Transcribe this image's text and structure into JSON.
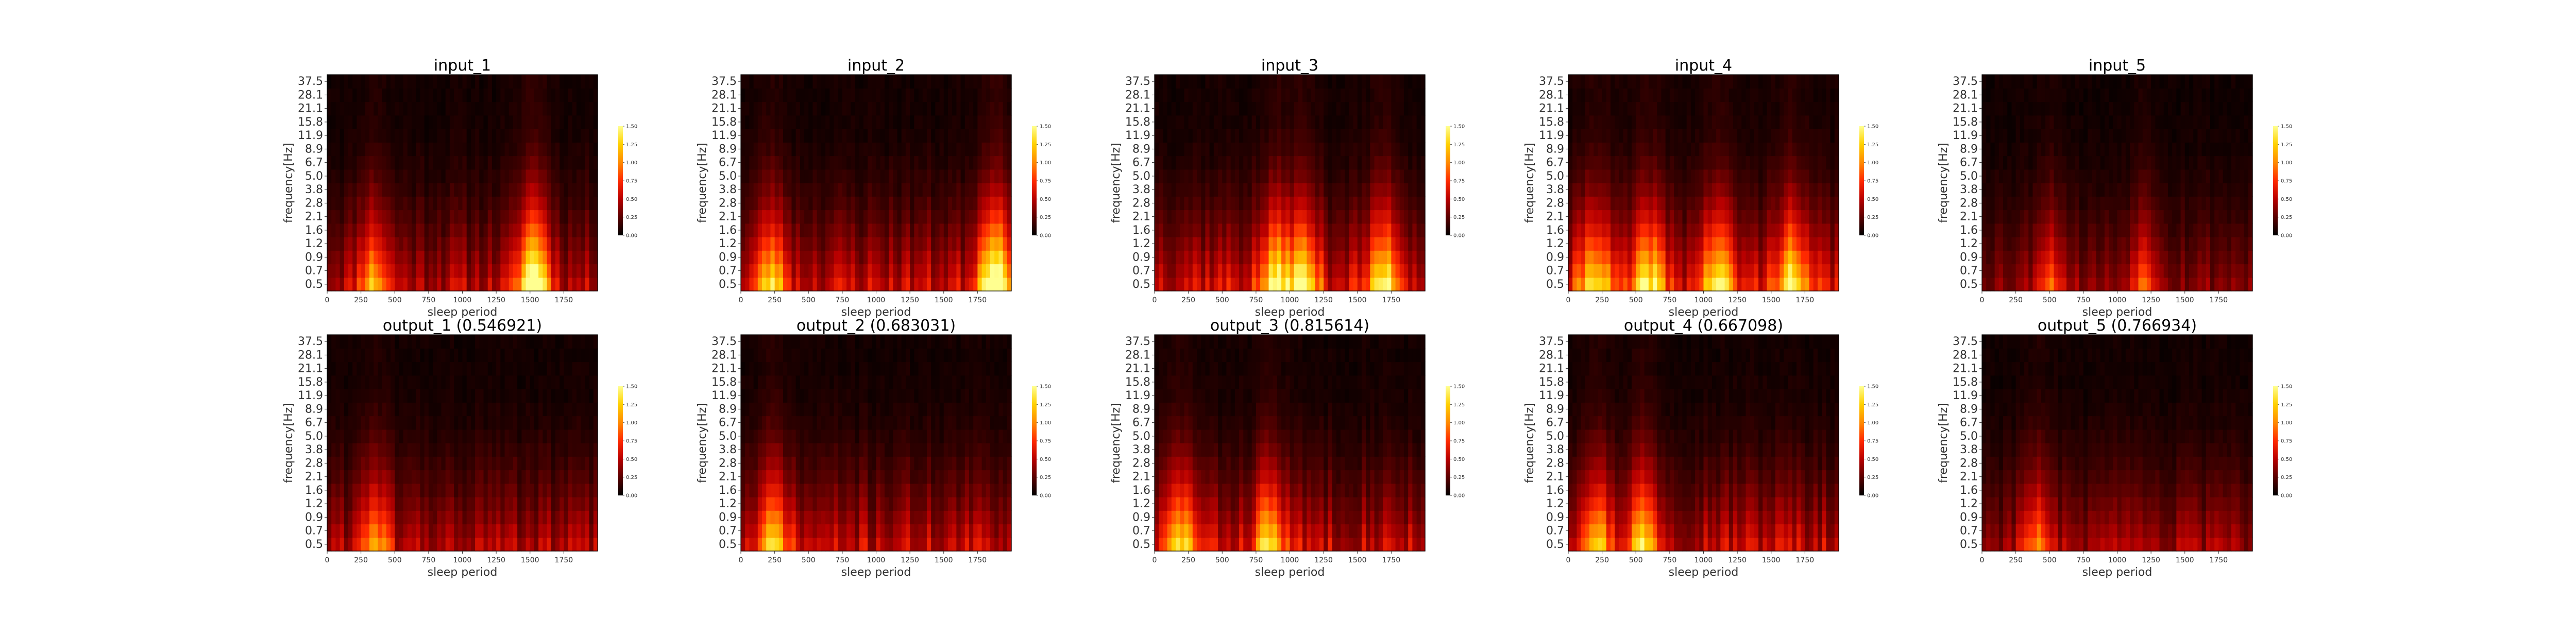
{
  "chart_data": {
    "type": "heatmap",
    "rows": 2,
    "cols": 5,
    "colormap": "hot",
    "colors": {
      "hot_stops": [
        "#000000",
        "#5a0000",
        "#b80000",
        "#ff2a00",
        "#ff8a00",
        "#ffd000",
        "#ffff90"
      ]
    },
    "x_ticks": [
      0,
      250,
      500,
      750,
      1000,
      1250,
      1500,
      1750
    ],
    "x_range": [
      0,
      2000
    ],
    "y_ticks": [
      "0.5",
      "0.7",
      "0.9",
      "1.2",
      "1.6",
      "2.1",
      "2.8",
      "3.8",
      "5.0",
      "6.7",
      "8.9",
      "11.9",
      "15.8",
      "21.1",
      "28.1",
      "37.5"
    ],
    "colorbar_ticks": [
      "0.00",
      "0.25",
      "0.50",
      "0.75",
      "1.00",
      "1.25",
      "1.50"
    ],
    "colorbar_range": [
      0,
      1.5
    ],
    "panels": [
      {
        "title": "input_1",
        "xlabel": "sleep period",
        "ylabel": "frequency[Hz]",
        "intensity": 0.8,
        "seed": 11,
        "bursts": [
          340,
          1510,
          1550
        ]
      },
      {
        "title": "input_2",
        "xlabel": "sleep period",
        "ylabel": "frequency[Hz]",
        "intensity": 0.9,
        "seed": 23,
        "bursts": [
          230,
          1840,
          1920
        ]
      },
      {
        "title": "input_3",
        "xlabel": "sleep period",
        "ylabel": "frequency[Hz]",
        "intensity": 1.0,
        "seed": 37,
        "bursts": [
          900,
          1100,
          1700
        ]
      },
      {
        "title": "input_4",
        "xlabel": "sleep period",
        "ylabel": "frequency[Hz]",
        "intensity": 1.0,
        "seed": 41,
        "bursts": [
          200,
          600,
          1100,
          1640
        ]
      },
      {
        "title": "input_5",
        "xlabel": "sleep period",
        "ylabel": "frequency[Hz]",
        "intensity": 0.6,
        "seed": 53,
        "bursts": [
          500,
          1200
        ]
      },
      {
        "title": "output_1 (0.546921)",
        "xlabel": "sleep period",
        "ylabel": "frequency[Hz]",
        "intensity": 0.75,
        "seed": 61,
        "bursts": [
          350
        ]
      },
      {
        "title": "output_2 (0.683031)",
        "xlabel": "sleep period",
        "ylabel": "frequency[Hz]",
        "intensity": 0.85,
        "seed": 71,
        "bursts": [
          250
        ]
      },
      {
        "title": "output_3 (0.815614)",
        "xlabel": "sleep period",
        "ylabel": "frequency[Hz]",
        "intensity": 0.9,
        "seed": 83,
        "bursts": [
          200,
          850
        ]
      },
      {
        "title": "output_4 (0.667098)",
        "xlabel": "sleep period",
        "ylabel": "frequency[Hz]",
        "intensity": 0.9,
        "seed": 97,
        "bursts": [
          200,
          550
        ]
      },
      {
        "title": "output_5 (0.766934)",
        "xlabel": "sleep period",
        "ylabel": "frequency[Hz]",
        "intensity": 0.65,
        "seed": 103,
        "bursts": [
          400
        ]
      }
    ]
  }
}
